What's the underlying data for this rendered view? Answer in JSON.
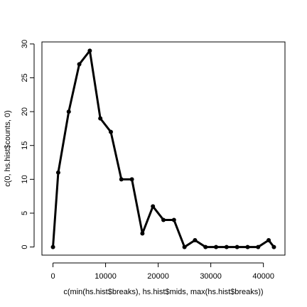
{
  "chart_data": {
    "type": "line",
    "title": "",
    "xlabel": "c(min(hs.hist$breaks), hs.hist$mids, max(hs.hist$breaks))",
    "ylabel": "c(0, hs.hist$counts, 0)",
    "xlim": [
      -2100,
      44100
    ],
    "ylim": [
      -1.2,
      30.3
    ],
    "x_ticks": [
      0,
      10000,
      20000,
      30000,
      40000
    ],
    "y_ticks": [
      0,
      5,
      10,
      15,
      20,
      25,
      30
    ],
    "grid": false,
    "legend": "none",
    "line_color": "#000000",
    "marker": "filled-circle",
    "series": [
      {
        "x": [
          0,
          1000,
          3000,
          5000,
          7000,
          9000,
          11000,
          13000,
          15000,
          17000,
          19000,
          21000,
          23000,
          25000,
          27000,
          29000,
          31000,
          33000,
          35000,
          37000,
          39000,
          41000,
          42000
        ],
        "values": [
          0,
          11,
          20,
          27,
          29,
          19,
          17,
          10,
          10,
          2,
          6,
          4,
          4,
          0,
          1,
          0,
          0,
          0,
          0,
          0,
          0,
          1,
          0
        ]
      }
    ]
  }
}
